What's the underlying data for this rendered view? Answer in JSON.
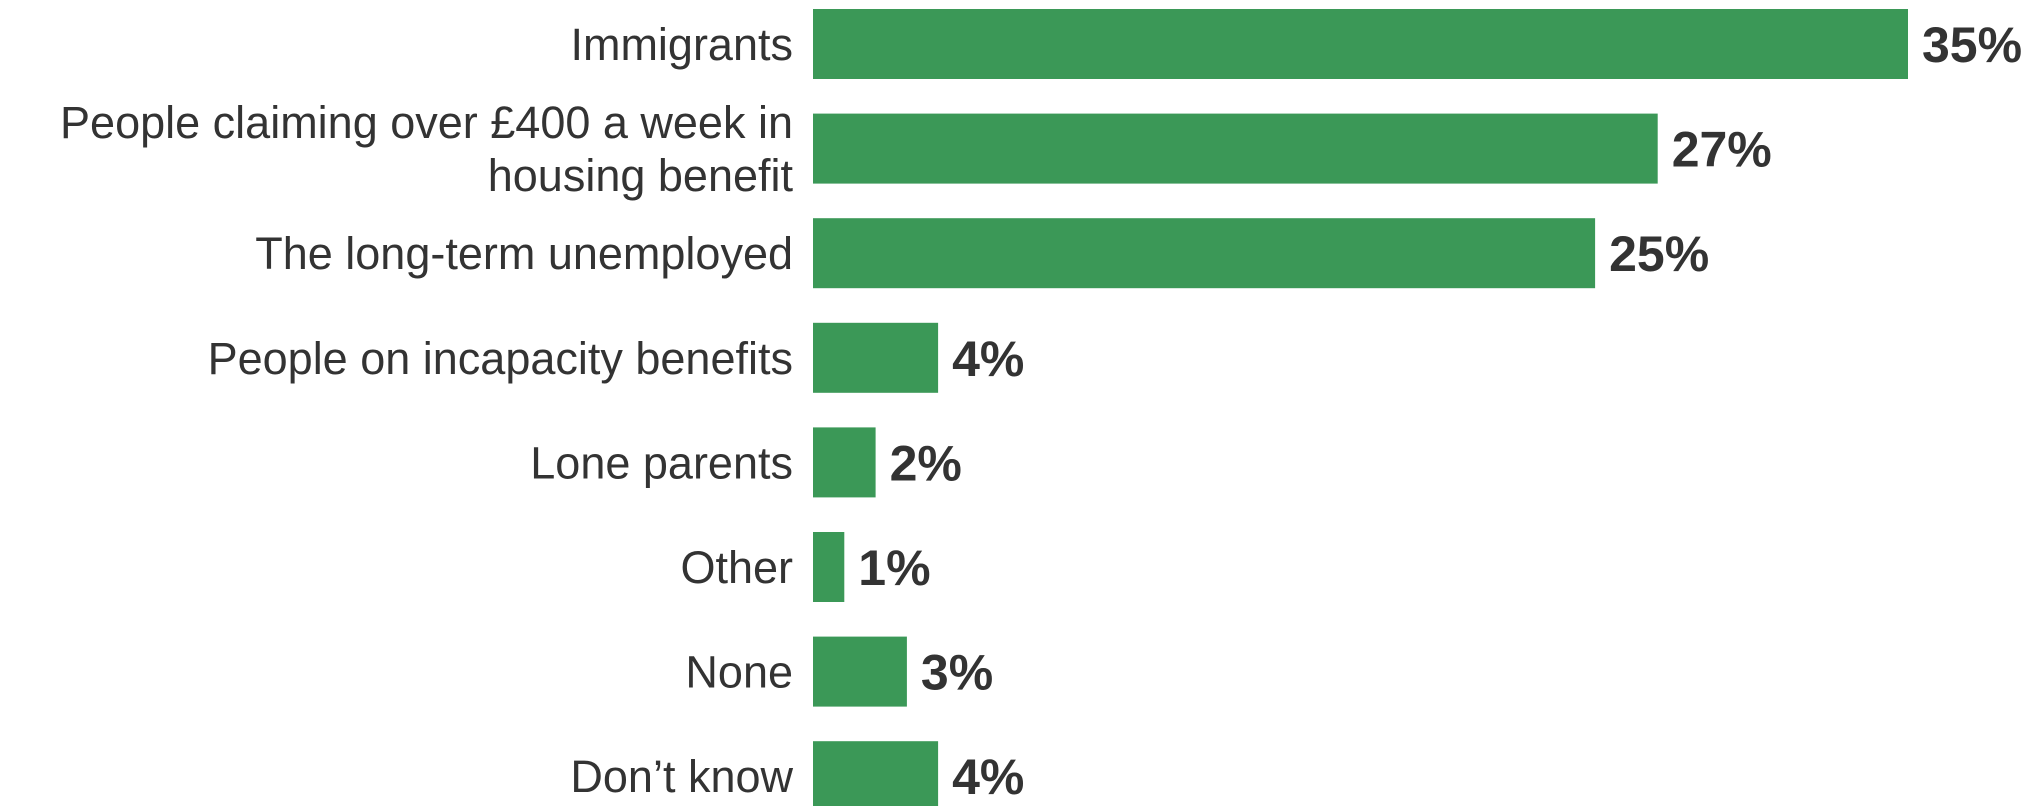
{
  "chart_data": {
    "type": "bar",
    "orientation": "horizontal",
    "categories": [
      [
        "Immigrants"
      ],
      [
        "People claiming over £400 a week in",
        "housing benefit"
      ],
      [
        "The long-term unemployed"
      ],
      [
        "People on incapacity benefits"
      ],
      [
        "Lone parents"
      ],
      [
        "Other"
      ],
      [
        "None"
      ],
      [
        "Don’t know"
      ]
    ],
    "values": [
      35,
      27,
      25,
      4,
      2,
      1,
      3,
      4
    ],
    "value_labels": [
      "35%",
      "27%",
      "25%",
      "4%",
      "2%",
      "1%",
      "3%",
      "4%"
    ],
    "xlim": [
      0,
      35
    ],
    "grid": false,
    "bar_color": "#3b9857",
    "label_color": "#333333"
  }
}
